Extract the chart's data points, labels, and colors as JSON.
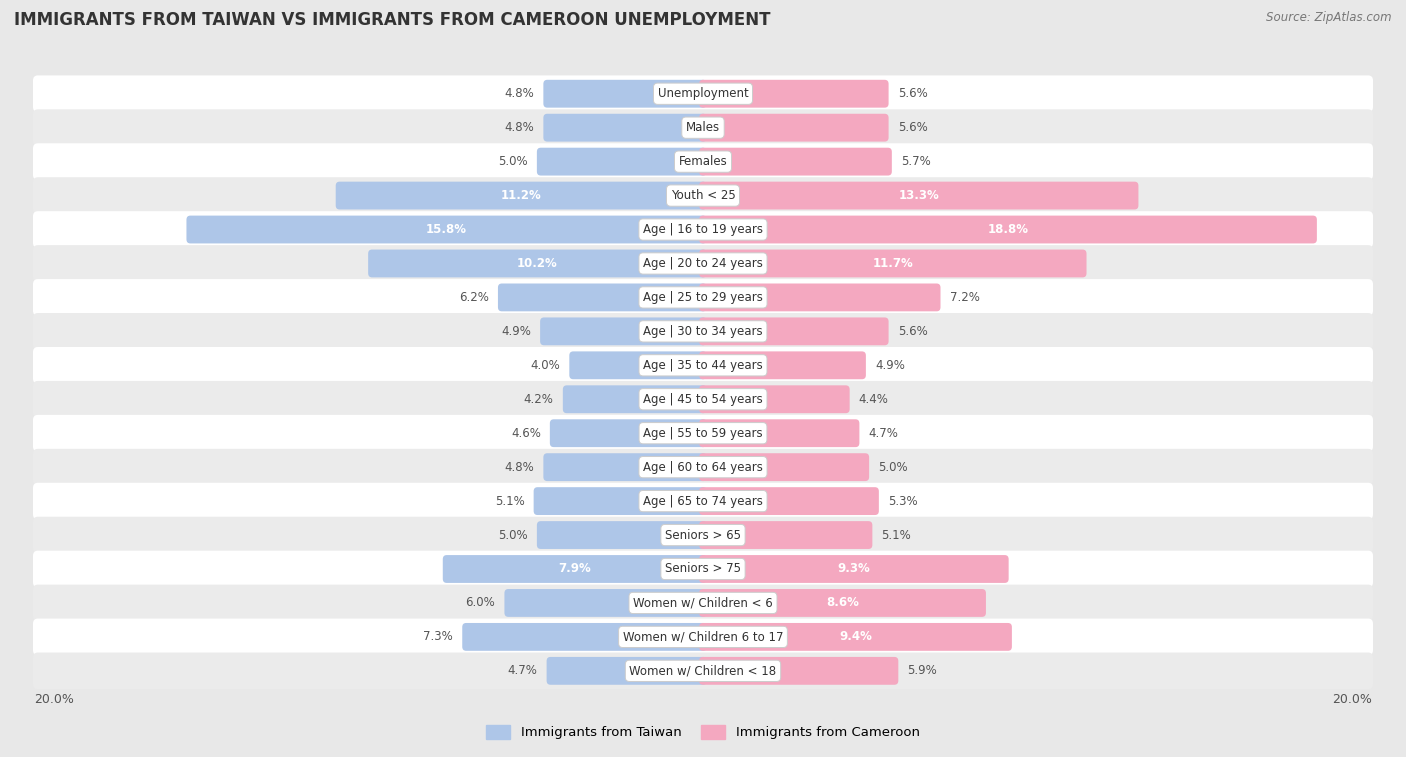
{
  "title": "IMMIGRANTS FROM TAIWAN VS IMMIGRANTS FROM CAMEROON UNEMPLOYMENT",
  "source": "Source: ZipAtlas.com",
  "categories": [
    "Unemployment",
    "Males",
    "Females",
    "Youth < 25",
    "Age | 16 to 19 years",
    "Age | 20 to 24 years",
    "Age | 25 to 29 years",
    "Age | 30 to 34 years",
    "Age | 35 to 44 years",
    "Age | 45 to 54 years",
    "Age | 55 to 59 years",
    "Age | 60 to 64 years",
    "Age | 65 to 74 years",
    "Seniors > 65",
    "Seniors > 75",
    "Women w/ Children < 6",
    "Women w/ Children 6 to 17",
    "Women w/ Children < 18"
  ],
  "taiwan_values": [
    4.8,
    4.8,
    5.0,
    11.2,
    15.8,
    10.2,
    6.2,
    4.9,
    4.0,
    4.2,
    4.6,
    4.8,
    5.1,
    5.0,
    7.9,
    6.0,
    7.3,
    4.7
  ],
  "cameroon_values": [
    5.6,
    5.6,
    5.7,
    13.3,
    18.8,
    11.7,
    7.2,
    5.6,
    4.9,
    4.4,
    4.7,
    5.0,
    5.3,
    5.1,
    9.3,
    8.6,
    9.4,
    5.9
  ],
  "taiwan_color": "#aec6e8",
  "cameroon_color": "#f4a8c0",
  "taiwan_label": "Immigrants from Taiwan",
  "cameroon_label": "Immigrants from Cameroon",
  "axis_max": 20.0,
  "bg_color": "#e8e8e8",
  "row_bg_white": "#ffffff",
  "row_bg_gray": "#ebebeb",
  "title_fontsize": 12,
  "source_fontsize": 8.5,
  "label_fontsize": 8.5,
  "value_fontsize": 8.5
}
